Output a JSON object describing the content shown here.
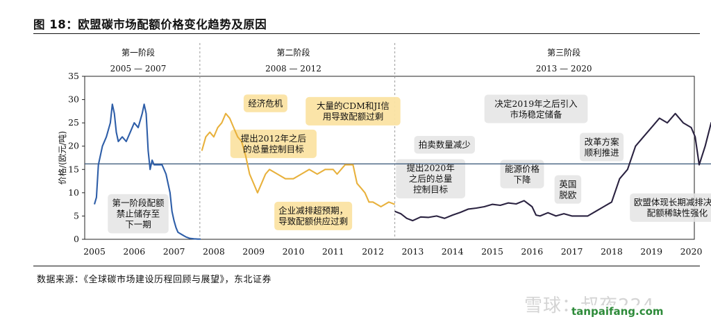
{
  "figure": {
    "title": "图 18：欧盟碳市场配额价格变化趋势及原因",
    "source": "数据来源：《全球碳市场建设历程回顾与展望》，东北证券"
  },
  "watermark": {
    "main": "雪球：叔夜224",
    "site": "tanpaifang.com"
  },
  "chart_data": {
    "type": "line",
    "ylabel": "价格/(欧元/吨)",
    "xlabel": "",
    "ylim": [
      0,
      35
    ],
    "xlim": [
      2004.75,
      2021.25
    ],
    "y_ticks": [
      0,
      5,
      10,
      15,
      20,
      25,
      30,
      35
    ],
    "x_ticks": [
      {
        "x": 2005,
        "label": "2005"
      },
      {
        "x": 2006,
        "label": "2006"
      },
      {
        "x": 2007,
        "label": "2007"
      },
      {
        "x": 2008,
        "label": "2008"
      },
      {
        "x": 2009,
        "label": "2009"
      },
      {
        "x": 2010,
        "label": "2010"
      },
      {
        "x": 2011,
        "label": "2011"
      },
      {
        "x": 2012,
        "label": "2012"
      },
      {
        "x": 2013,
        "label": "2013"
      },
      {
        "x": 2014,
        "label": "2014"
      },
      {
        "x": 2015,
        "label": "2015"
      },
      {
        "x": 2016,
        "label": "2016"
      },
      {
        "x": 2017,
        "label": "2017"
      },
      {
        "x": 2018,
        "label": "2018"
      },
      {
        "x": 2019,
        "label": "2019"
      },
      {
        "x": 2020,
        "label": "2020"
      }
    ],
    "reference_line": {
      "y": 16.2,
      "color": "#2f4f73"
    },
    "phases": [
      {
        "name": "第一阶段",
        "range": "2005 — 2007",
        "x_center": 2006.1
      },
      {
        "name": "第二阶段",
        "range": "2008 — 2012",
        "x_center": 2010.0
      },
      {
        "name": "第三阶段",
        "range": "2013 — 2020",
        "x_center": 2016.8
      }
    ],
    "phase_dividers": [
      2007.65,
      2012.55
    ],
    "series": [
      {
        "color": "#2e5ea8",
        "x": [
          2005.0,
          2005.05,
          2005.1,
          2005.2,
          2005.3,
          2005.4,
          2005.45,
          2005.5,
          2005.55,
          2005.6,
          2005.7,
          2005.8,
          2005.9,
          2006.0,
          2006.1,
          2006.2,
          2006.25,
          2006.3,
          2006.35,
          2006.4,
          2006.45,
          2006.5,
          2006.6,
          2006.7,
          2006.8,
          2006.9,
          2006.95,
          2007.0,
          2007.05,
          2007.1,
          2007.2,
          2007.3,
          2007.4,
          2007.5,
          2007.6,
          2007.67
        ],
        "y": [
          7.5,
          9,
          16,
          20,
          22,
          25,
          29,
          27,
          23,
          21,
          22,
          21,
          23,
          25,
          24,
          27,
          29,
          27,
          19,
          15,
          17,
          16,
          16,
          16,
          14,
          10,
          6,
          4,
          2.5,
          1.5,
          1,
          0.5,
          0.2,
          0.1,
          0.05,
          0.05
        ]
      },
      {
        "color": "#e8b13c",
        "x": [
          2007.7,
          2007.8,
          2007.9,
          2008.0,
          2008.1,
          2008.2,
          2008.3,
          2008.4,
          2008.5,
          2008.6,
          2008.7,
          2008.8,
          2008.9,
          2009.0,
          2009.1,
          2009.2,
          2009.3,
          2009.4,
          2009.6,
          2009.8,
          2010.0,
          2010.2,
          2010.4,
          2010.6,
          2010.8,
          2011.0,
          2011.1,
          2011.3,
          2011.5,
          2011.6,
          2011.7,
          2011.8,
          2011.9,
          2012.0,
          2012.2,
          2012.4,
          2012.55
        ],
        "y": [
          19,
          22,
          23,
          22,
          24,
          25,
          27,
          26,
          24,
          22,
          21,
          18,
          14,
          12,
          10,
          12,
          14,
          15,
          14,
          13,
          13,
          14,
          15,
          14,
          15,
          15,
          14,
          16,
          16,
          12,
          11,
          10,
          8,
          8,
          7,
          8,
          7.5
        ]
      },
      {
        "color": "#2a2240",
        "x": [
          2012.55,
          2012.7,
          2012.85,
          2013.0,
          2013.2,
          2013.4,
          2013.6,
          2013.8,
          2014.0,
          2014.2,
          2014.4,
          2014.6,
          2014.8,
          2015.0,
          2015.2,
          2015.4,
          2015.6,
          2015.8,
          2016.0,
          2016.1,
          2016.2,
          2016.4,
          2016.6,
          2016.8,
          2017.0,
          2017.2,
          2017.4,
          2017.6,
          2017.8,
          2018.0,
          2018.2,
          2018.4,
          2018.6,
          2018.8,
          2019.0,
          2019.2,
          2019.4,
          2019.6,
          2019.8,
          2020.0,
          2020.1,
          2020.2,
          2020.35,
          2020.5,
          2020.7,
          2020.85,
          2020.95,
          2021.0,
          2021.05,
          2021.15
        ],
        "y": [
          6,
          5.5,
          4.5,
          4,
          4.8,
          4.7,
          5,
          4.5,
          5.2,
          5.8,
          6.5,
          6.7,
          7,
          7.5,
          7.3,
          7.8,
          7.6,
          8.3,
          7,
          5.2,
          5,
          5.7,
          5,
          5.5,
          5,
          5,
          5,
          6,
          7,
          8,
          13,
          15,
          20,
          22,
          24,
          26,
          25,
          27,
          25,
          24,
          22,
          16,
          20,
          25,
          27,
          24,
          29,
          33,
          31,
          33
        ]
      }
    ],
    "annotations": [
      {
        "text": "经济危机",
        "x": 2009.3,
        "y": 29.2
      },
      {
        "text": "提出2012年之后\n的总量控制目标",
        "x": 2009.5,
        "y": 20.5
      },
      {
        "text": "大量的CDM和JI信\n用导致配额过剩",
        "x": 2011.5,
        "y": 27.5
      },
      {
        "text": "企业减排超预期，\n导致配额供应过剩",
        "x": 2010.5,
        "y": 5
      },
      {
        "text": "第一阶段配额\n禁止储存至\n下一期",
        "x": 2006.1,
        "y": 5.5
      },
      {
        "text": "决定2019年之后引入\n市场稳定储备",
        "x": 2016.1,
        "y": 28
      },
      {
        "text": "拍卖数量减少",
        "x": 2013.8,
        "y": 20.3
      },
      {
        "text": "提出2020年\n之后的总量\n控制目标",
        "x": 2013.45,
        "y": 13
      },
      {
        "text": "能源价格\n下降",
        "x": 2015.75,
        "y": 14
      },
      {
        "text": "英国\n脱欧",
        "x": 2016.9,
        "y": 10.7
      },
      {
        "text": "改革方案\n顺利推进",
        "x": 2017.75,
        "y": 19.8
      },
      {
        "text": "欧盟体现长期减排决心\n配额稀缺性强化",
        "x": 2019.65,
        "y": 6.8
      }
    ]
  }
}
